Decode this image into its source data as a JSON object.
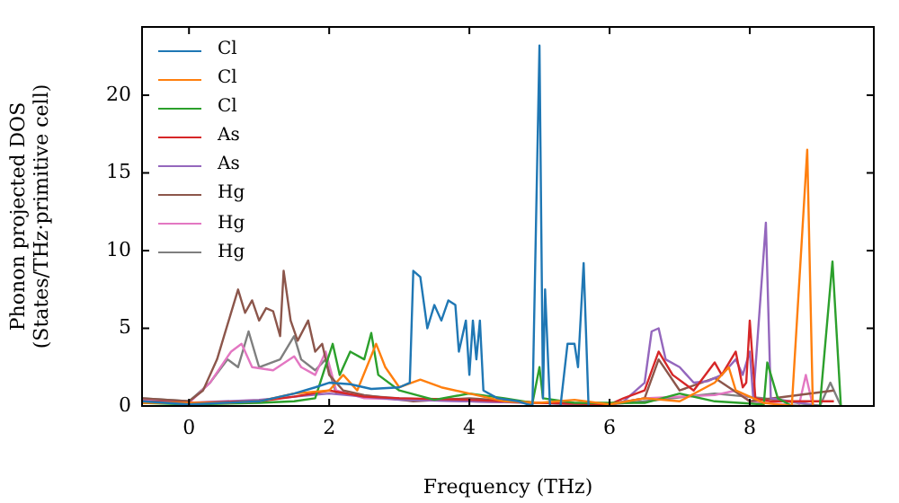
{
  "chart_data": {
    "type": "line",
    "xlabel": "Frequency (THz)",
    "ylabel": "Phonon projected DOS\n(States/THz·primitive cell)",
    "xlim": [
      -0.67,
      9.77
    ],
    "ylim": [
      0,
      24.4
    ],
    "xticks": [
      0,
      2,
      4,
      6,
      8
    ],
    "yticks": [
      0,
      5,
      10,
      15,
      20
    ],
    "grid": false,
    "legend": "top left",
    "marker": "none",
    "line_style": "solid",
    "series": [
      {
        "name": "Cl",
        "color": "#1f77b4",
        "x": [
          -0.67,
          0,
          0.5,
          1,
          1.5,
          1.8,
          2,
          2.3,
          2.6,
          3,
          3.15,
          3.2,
          3.3,
          3.4,
          3.5,
          3.6,
          3.7,
          3.8,
          3.85,
          3.95,
          4,
          4.05,
          4.1,
          4.15,
          4.2,
          4.4,
          4.7,
          4.9,
          5,
          5.05,
          5.08,
          5.15,
          5.3,
          5.4,
          5.5,
          5.55,
          5.63,
          5.7
        ],
        "values": [
          0.3,
          0.1,
          0.2,
          0.3,
          0.8,
          1.2,
          1.5,
          1.4,
          1.1,
          1.2,
          1.5,
          8.7,
          8.3,
          5,
          6.5,
          5.5,
          6.8,
          6.5,
          3.5,
          5.5,
          2,
          5.5,
          3,
          5.5,
          1,
          0.5,
          0.3,
          0,
          23.2,
          0.5,
          7.5,
          0,
          0,
          4,
          4,
          2.5,
          9.2,
          0
        ]
      },
      {
        "name": "Cl",
        "color": "#ff7f0e",
        "x": [
          -0.67,
          0,
          0.5,
          1,
          1.5,
          2,
          2.2,
          2.4,
          2.67,
          2.8,
          3,
          3.3,
          3.6,
          4,
          4.5,
          5,
          5.5,
          6,
          6.5,
          7,
          7.5,
          7.7,
          7.8,
          8.2,
          8.6,
          8.82,
          8.9
        ],
        "values": [
          0.2,
          0.2,
          0.2,
          0.3,
          0.8,
          1,
          2,
          1,
          4,
          2.5,
          1.2,
          1.7,
          1.2,
          0.8,
          0.3,
          0.2,
          0.4,
          0.1,
          0.5,
          0.3,
          1.5,
          2.5,
          1,
          0.2,
          0,
          16.5,
          0
        ]
      },
      {
        "name": "Cl",
        "color": "#2ca02c",
        "x": [
          -0.67,
          0,
          1,
          1.5,
          1.8,
          2.05,
          2.15,
          2.3,
          2.5,
          2.6,
          2.7,
          3,
          3.5,
          4,
          4.5,
          4.9,
          5,
          5.05,
          5.5,
          6.5,
          7,
          7.5,
          8.2,
          8.25,
          8.4,
          8.6,
          9,
          9.18,
          9.3
        ],
        "values": [
          0.2,
          0.1,
          0.2,
          0.3,
          0.5,
          4,
          2,
          3.5,
          3,
          4.7,
          2,
          1,
          0.4,
          0.8,
          0.5,
          0.2,
          2.5,
          0.5,
          0.2,
          0.2,
          0.8,
          0.3,
          0.1,
          2.8,
          0.5,
          0,
          0,
          9.3,
          0
        ]
      },
      {
        "name": "As",
        "color": "#d62728",
        "x": [
          -0.67,
          0,
          1,
          1.5,
          2,
          2.5,
          3,
          4,
          5,
          6,
          6.2,
          6.5,
          6.7,
          6.9,
          7.2,
          7.5,
          7.6,
          7.8,
          7.9,
          7.95,
          8,
          8.08,
          8.3,
          9.2
        ],
        "values": [
          0.3,
          0.2,
          0.3,
          0.6,
          1,
          0.6,
          0.5,
          0.4,
          0.2,
          0.1,
          0.5,
          1,
          3.5,
          2,
          1,
          2.8,
          2,
          3.5,
          1.2,
          1.5,
          5.5,
          0.5,
          0.3,
          0.3
        ]
      },
      {
        "name": "As",
        "color": "#9467bd",
        "x": [
          -0.67,
          0,
          1,
          2,
          3,
          4,
          5,
          6,
          6.2,
          6.5,
          6.6,
          6.7,
          6.8,
          7,
          7.2,
          7.4,
          7.6,
          7.8,
          7.9,
          8,
          8.05,
          8.23,
          8.3,
          9
        ],
        "values": [
          0.2,
          0.2,
          0.4,
          0.8,
          0.4,
          0.3,
          0.2,
          0.1,
          0.3,
          1.5,
          4.8,
          5,
          3,
          2.5,
          1.5,
          1.6,
          2,
          3,
          2,
          3.5,
          0.5,
          11.8,
          0.5,
          0
        ]
      },
      {
        "name": "Hg",
        "color": "#8c564b",
        "x": [
          -0.67,
          0,
          0.2,
          0.4,
          0.5,
          0.7,
          0.8,
          0.9,
          1,
          1.1,
          1.2,
          1.3,
          1.35,
          1.45,
          1.55,
          1.7,
          1.8,
          1.9,
          2,
          2.2,
          2.5,
          3.2,
          4,
          5,
          6,
          6.5,
          6.7,
          7,
          7.5,
          8,
          9.2
        ],
        "values": [
          0.5,
          0.3,
          1,
          3,
          4.5,
          7.5,
          6,
          6.8,
          5.5,
          6.3,
          6.1,
          4.5,
          8.7,
          5.5,
          4.2,
          5.5,
          3.5,
          4,
          2,
          1,
          0.7,
          0.3,
          0.5,
          0.2,
          0.1,
          0.5,
          3,
          1,
          1.8,
          0.3,
          1
        ]
      },
      {
        "name": "Hg",
        "color": "#e377c2",
        "x": [
          -0.67,
          0,
          0.3,
          0.6,
          0.75,
          0.9,
          1.2,
          1.5,
          1.6,
          1.8,
          1.95,
          2.1,
          2.5,
          4,
          6,
          6.5,
          7.5,
          7.8,
          8,
          8.7,
          8.8,
          8.9
        ],
        "values": [
          0.4,
          0.2,
          1.5,
          3.5,
          4,
          2.5,
          2.3,
          3.2,
          2.5,
          2,
          3.5,
          1,
          0.5,
          0.3,
          0.1,
          0.5,
          0.7,
          1,
          0.3,
          0,
          2,
          0
        ]
      },
      {
        "name": "Hg",
        "color": "#7f7f7f",
        "x": [
          -0.67,
          0,
          0.3,
          0.55,
          0.7,
          0.85,
          1,
          1.3,
          1.5,
          1.6,
          1.8,
          1.95,
          2.1,
          3,
          4,
          6,
          6.5,
          7.5,
          8.2,
          9,
          9.15,
          9.3
        ],
        "values": [
          0.5,
          0.3,
          1.5,
          3,
          2.5,
          4.8,
          2.5,
          3,
          4.5,
          3,
          2.3,
          3,
          0.8,
          0.5,
          0.3,
          0.1,
          0.3,
          0.8,
          0.5,
          0,
          1.5,
          0
        ]
      }
    ]
  }
}
